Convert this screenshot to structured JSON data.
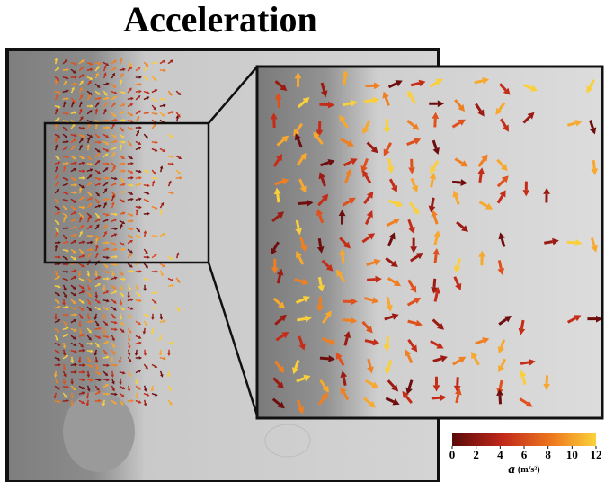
{
  "title": "Acceleration",
  "colorbar": {
    "range": [
      0,
      12
    ],
    "ticks": [
      0,
      2,
      4,
      6,
      8,
      10,
      12
    ],
    "symbol": "a",
    "unit": "(m/s²)"
  }
}
